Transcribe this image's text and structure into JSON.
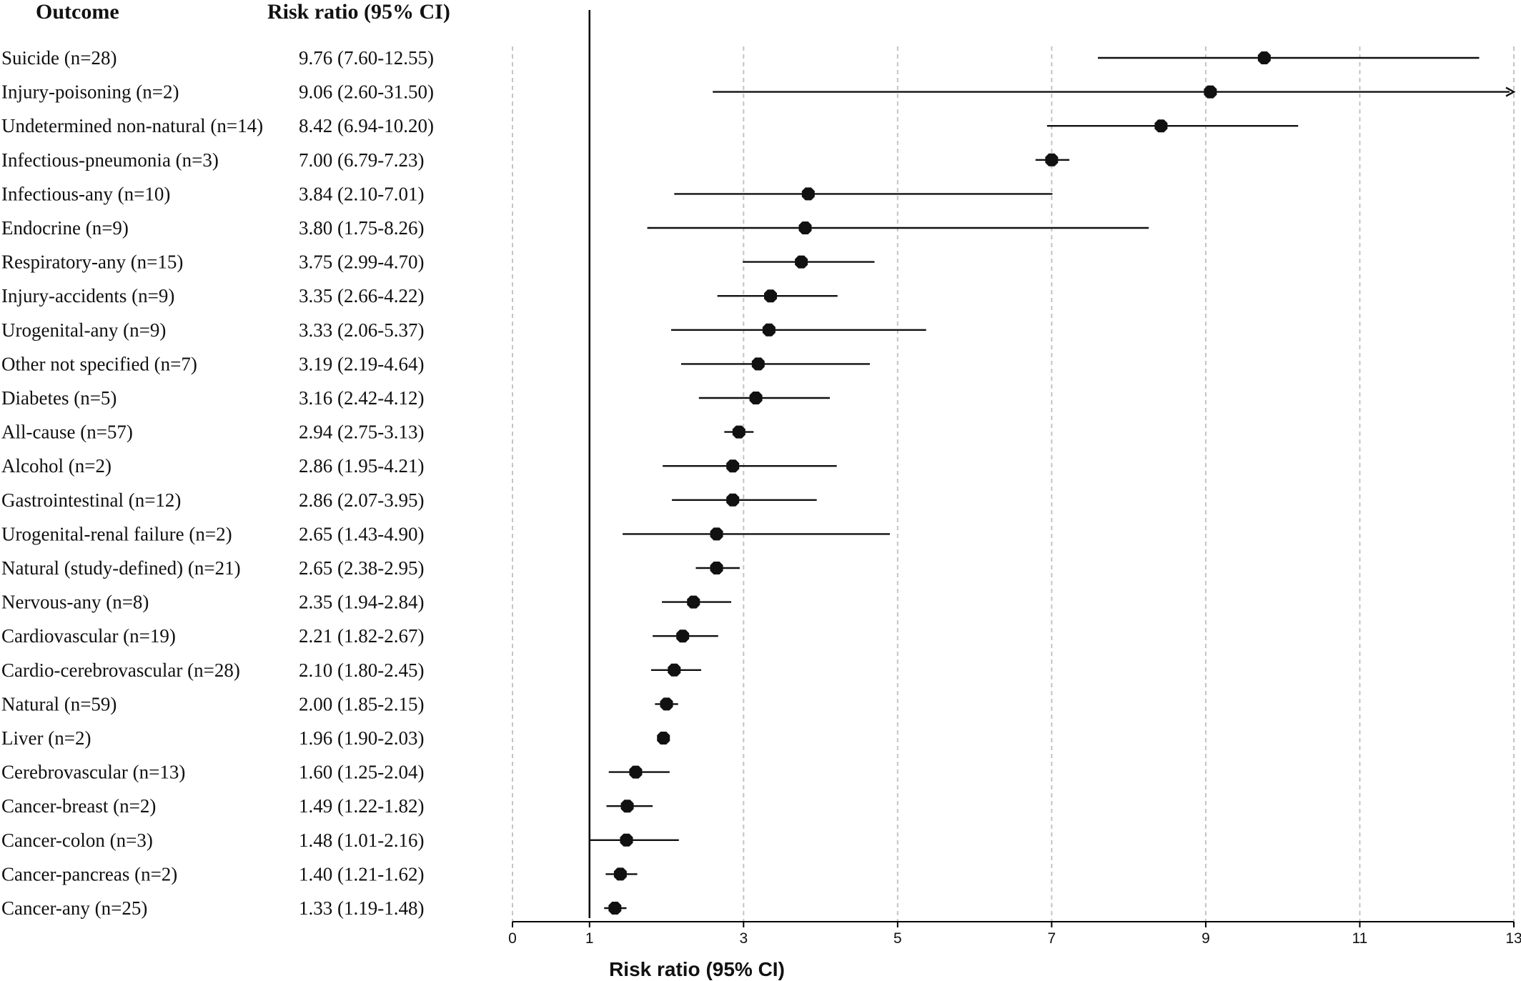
{
  "chart_data": {
    "type": "forest",
    "columns": {
      "outcome_header": "Outcome",
      "ratio_header": "Risk ratio (95% CI)"
    },
    "xlabel": "Risk ratio (95% CI)",
    "xlim": [
      0,
      13
    ],
    "x_ticks": [
      0,
      1,
      3,
      5,
      7,
      9,
      11,
      13
    ],
    "grid": true,
    "reference_line": 1,
    "rows": [
      {
        "label": "Suicide (n=28)",
        "rr_text": "9.76 (7.60-12.55)",
        "rr": 9.76,
        "lo": 7.6,
        "hi": 12.55
      },
      {
        "label": "Injury-poisoning (n=2)",
        "rr_text": "9.06 (2.60-31.50)",
        "rr": 9.06,
        "lo": 2.6,
        "hi": 31.5
      },
      {
        "label": "Undetermined non-natural (n=14)",
        "rr_text": "8.42 (6.94-10.20)",
        "rr": 8.42,
        "lo": 6.94,
        "hi": 10.2
      },
      {
        "label": "Infectious-pneumonia (n=3)",
        "rr_text": "7.00 (6.79-7.23)",
        "rr": 7.0,
        "lo": 6.79,
        "hi": 7.23
      },
      {
        "label": "Infectious-any (n=10)",
        "rr_text": "3.84 (2.10-7.01)",
        "rr": 3.84,
        "lo": 2.1,
        "hi": 7.01
      },
      {
        "label": "Endocrine (n=9)",
        "rr_text": "3.80 (1.75-8.26)",
        "rr": 3.8,
        "lo": 1.75,
        "hi": 8.26
      },
      {
        "label": "Respiratory-any (n=15)",
        "rr_text": "3.75 (2.99-4.70)",
        "rr": 3.75,
        "lo": 2.99,
        "hi": 4.7
      },
      {
        "label": "Injury-accidents (n=9)",
        "rr_text": "3.35 (2.66-4.22)",
        "rr": 3.35,
        "lo": 2.66,
        "hi": 4.22
      },
      {
        "label": "Urogenital-any (n=9)",
        "rr_text": "3.33 (2.06-5.37)",
        "rr": 3.33,
        "lo": 2.06,
        "hi": 5.37
      },
      {
        "label": "Other not specified (n=7)",
        "rr_text": "3.19 (2.19-4.64)",
        "rr": 3.19,
        "lo": 2.19,
        "hi": 4.64
      },
      {
        "label": "Diabetes (n=5)",
        "rr_text": "3.16 (2.42-4.12)",
        "rr": 3.16,
        "lo": 2.42,
        "hi": 4.12
      },
      {
        "label": "All-cause (n=57)",
        "rr_text": "2.94 (2.75-3.13)",
        "rr": 2.94,
        "lo": 2.75,
        "hi": 3.13
      },
      {
        "label": "Alcohol (n=2)",
        "rr_text": "2.86 (1.95-4.21)",
        "rr": 2.86,
        "lo": 1.95,
        "hi": 4.21
      },
      {
        "label": "Gastrointestinal (n=12)",
        "rr_text": "2.86 (2.07-3.95)",
        "rr": 2.86,
        "lo": 2.07,
        "hi": 3.95
      },
      {
        "label": "Urogenital-renal failure (n=2)",
        "rr_text": "2.65 (1.43-4.90)",
        "rr": 2.65,
        "lo": 1.43,
        "hi": 4.9
      },
      {
        "label": "Natural (study-defined) (n=21)",
        "rr_text": "2.65 (2.38-2.95)",
        "rr": 2.65,
        "lo": 2.38,
        "hi": 2.95
      },
      {
        "label": "Nervous-any (n=8)",
        "rr_text": "2.35 (1.94-2.84)",
        "rr": 2.35,
        "lo": 1.94,
        "hi": 2.84
      },
      {
        "label": "Cardiovascular (n=19)",
        "rr_text": "2.21 (1.82-2.67)",
        "rr": 2.21,
        "lo": 1.82,
        "hi": 2.67
      },
      {
        "label": "Cardio-cerebrovascular (n=28)",
        "rr_text": "2.10 (1.80-2.45)",
        "rr": 2.1,
        "lo": 1.8,
        "hi": 2.45
      },
      {
        "label": "Natural (n=59)",
        "rr_text": "2.00 (1.85-2.15)",
        "rr": 2.0,
        "lo": 1.85,
        "hi": 2.15
      },
      {
        "label": "Liver (n=2)",
        "rr_text": "1.96 (1.90-2.03)",
        "rr": 1.96,
        "lo": 1.9,
        "hi": 2.03
      },
      {
        "label": "Cerebrovascular (n=13)",
        "rr_text": "1.60 (1.25-2.04)",
        "rr": 1.6,
        "lo": 1.25,
        "hi": 2.04
      },
      {
        "label": "Cancer-breast (n=2)",
        "rr_text": "1.49 (1.22-1.82)",
        "rr": 1.49,
        "lo": 1.22,
        "hi": 1.82
      },
      {
        "label": "Cancer-colon (n=3)",
        "rr_text": "1.48 (1.01-2.16)",
        "rr": 1.48,
        "lo": 1.01,
        "hi": 2.16
      },
      {
        "label": "Cancer-pancreas (n=2)",
        "rr_text": "1.40 (1.21-1.62)",
        "rr": 1.4,
        "lo": 1.21,
        "hi": 1.62
      },
      {
        "label": "Cancer-any (n=25)",
        "rr_text": "1.33 (1.19-1.48)",
        "rr": 1.33,
        "lo": 1.19,
        "hi": 1.48
      }
    ]
  }
}
